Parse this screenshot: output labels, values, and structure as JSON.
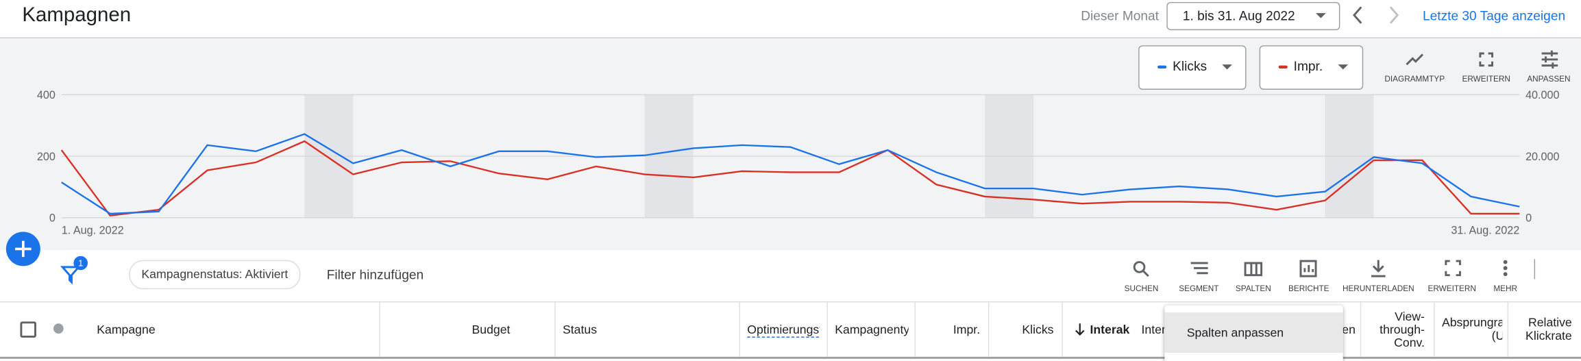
{
  "header": {
    "title": "Kampagnen",
    "period_label": "Dieser Monat",
    "date_range": "1. bis 31. Aug 2022",
    "link": "Letzte 30 Tage anzeigen"
  },
  "chart_tools": [
    "DIAGRAMMTYP",
    "ERWEITERN",
    "ANPASSEN"
  ],
  "chart_data": {
    "type": "line",
    "categories": [
      "1. Aug. 2022",
      null,
      null,
      null,
      null,
      null,
      null,
      null,
      null,
      null,
      null,
      null,
      null,
      null,
      null,
      null,
      null,
      null,
      null,
      null,
      null,
      null,
      null,
      null,
      null,
      null,
      null,
      null,
      null,
      null,
      "31. Aug. 2022"
    ],
    "series": [
      {
        "name": "Klicks",
        "color": "#1a73e8",
        "axis": "y",
        "values": [
          115,
          13,
          20,
          236,
          216,
          272,
          177,
          220,
          167,
          216,
          216,
          197,
          203,
          226,
          236,
          230,
          174,
          220,
          148,
          95,
          95,
          75,
          92,
          102,
          92,
          69,
          85,
          197,
          177,
          69,
          36
        ]
      },
      {
        "name": "Impr.",
        "color": "#d93025",
        "axis": "y2",
        "values": [
          22000,
          700,
          2600,
          15400,
          18000,
          24900,
          14100,
          18000,
          18400,
          14400,
          12500,
          16700,
          14100,
          13100,
          15100,
          14800,
          14800,
          22000,
          10800,
          6900,
          5900,
          4600,
          5200,
          5200,
          4900,
          2600,
          5600,
          18700,
          18700,
          1300,
          1300
        ]
      }
    ],
    "ylim": [
      0,
      400
    ],
    "yticks": [
      0,
      200,
      400
    ],
    "y2lim": [
      0,
      40000
    ],
    "y2ticks": [
      0,
      {
        "value": 20000,
        "label": "20.000"
      },
      {
        "value": 40000,
        "label": "40.000"
      }
    ],
    "grid": true
  },
  "toolbar": {
    "filter_count": 1,
    "filter_chip": "Kampagnenstatus: Aktiviert",
    "add_filter": "Filter hinzufügen",
    "tools": [
      "SUCHEN",
      "SEGMENT",
      "SPALTEN",
      "BERICHTE",
      "HERUNTERLADEN",
      "ERWEITERN",
      "MEHR"
    ]
  },
  "table": {
    "columns": [
      "Kampagne",
      "Budget",
      "Status",
      "Optimierungsfa",
      "Kampagnentyp",
      "Impr.",
      "Klicks",
      "Interak",
      "Inter",
      "en",
      "View-through-Conv.",
      "Absprungra (U",
      "Relative Klickrate"
    ]
  },
  "menu": {
    "items": [
      "Spalten anpassen"
    ]
  }
}
